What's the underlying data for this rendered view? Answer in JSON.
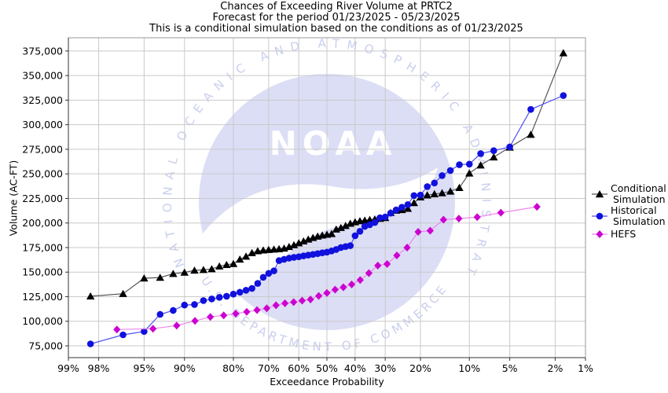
{
  "title": {
    "line1": "Chances of Exceeding River Volume at PRTC2",
    "line2": "Forecast for the period 01/23/2025 - 05/23/2025",
    "line3": "This is a conditional simulation based on the conditions as of 01/23/2025"
  },
  "watermark": {
    "arc_top_text": "NATIONAL OCEANIC AND ATMOSPHERIC ADMINISTRATION",
    "arc_bottom_text": "U.S. DEPARTMENT OF COMMERCE",
    "logo_text": "NOAA",
    "circle_color": "#dcdef6",
    "arc_text_color": "#c9cfee",
    "logo_letter_color": "#ffffff"
  },
  "chart_data": {
    "type": "line",
    "title": "Chances of Exceeding River Volume at PRTC2",
    "xlabel": "Exceedance Probability",
    "ylabel": "Volume (AC-FT)",
    "x_scale": "normal-probability-reversed",
    "grid": true,
    "legend_position": "right",
    "x_ticks": [
      {
        "value": 99,
        "label": "99%"
      },
      {
        "value": 98,
        "label": "98%"
      },
      {
        "value": 95,
        "label": "95%"
      },
      {
        "value": 90,
        "label": "90%"
      },
      {
        "value": 80,
        "label": "80%"
      },
      {
        "value": 70,
        "label": "70%"
      },
      {
        "value": 60,
        "label": "60%"
      },
      {
        "value": 50,
        "label": "50%"
      },
      {
        "value": 40,
        "label": "40%"
      },
      {
        "value": 30,
        "label": "30%"
      },
      {
        "value": 20,
        "label": "20%"
      },
      {
        "value": 10,
        "label": "10%"
      },
      {
        "value": 5,
        "label": "5%"
      },
      {
        "value": 2,
        "label": "2%"
      },
      {
        "value": 1,
        "label": "1%"
      }
    ],
    "y_ticks": [
      {
        "value": 75000,
        "label": "75,000"
      },
      {
        "value": 100000,
        "label": "100,000"
      },
      {
        "value": 125000,
        "label": "125,000"
      },
      {
        "value": 150000,
        "label": "150,000"
      },
      {
        "value": 175000,
        "label": "175,000"
      },
      {
        "value": 200000,
        "label": "200,000"
      },
      {
        "value": 225000,
        "label": "225,000"
      },
      {
        "value": 250000,
        "label": "250,000"
      },
      {
        "value": 275000,
        "label": "275,000"
      },
      {
        "value": 300000,
        "label": "300,000"
      },
      {
        "value": 325000,
        "label": "325,000"
      },
      {
        "value": 350000,
        "label": "350,000"
      },
      {
        "value": 375000,
        "label": "375,000"
      }
    ],
    "xlim_percent": [
      99,
      1
    ],
    "ylim": [
      63000,
      388500
    ],
    "series": [
      {
        "name": "Conditional Simulation",
        "legend_lines": [
          "Conditional",
          "Simulation"
        ],
        "marker": "triangle",
        "marker_color": "#000000",
        "line_color": "#555555",
        "points": [
          [
            98.33,
            125500
          ],
          [
            96.67,
            128000
          ],
          [
            95,
            143800
          ],
          [
            93.33,
            144500
          ],
          [
            91.67,
            148400
          ],
          [
            90,
            149700
          ],
          [
            88.33,
            151800
          ],
          [
            86.67,
            152400
          ],
          [
            85,
            153200
          ],
          [
            83.33,
            156000
          ],
          [
            81.67,
            157500
          ],
          [
            80,
            158500
          ],
          [
            78.33,
            163000
          ],
          [
            76.67,
            166000
          ],
          [
            75,
            169600
          ],
          [
            73.33,
            171500
          ],
          [
            71.67,
            172300
          ],
          [
            70,
            172800
          ],
          [
            68.33,
            173200
          ],
          [
            66.67,
            173600
          ],
          [
            65,
            174200
          ],
          [
            63.33,
            175800
          ],
          [
            61.67,
            177600
          ],
          [
            60,
            179600
          ],
          [
            58.33,
            181500
          ],
          [
            56.67,
            183400
          ],
          [
            55,
            185000
          ],
          [
            53.33,
            186400
          ],
          [
            51.67,
            187500
          ],
          [
            50,
            188300
          ],
          [
            48.33,
            189000
          ],
          [
            46.67,
            193600
          ],
          [
            45,
            195200
          ],
          [
            43.33,
            197200
          ],
          [
            41.67,
            199500
          ],
          [
            40,
            201000
          ],
          [
            38.33,
            202100
          ],
          [
            36.67,
            202700
          ],
          [
            35,
            203300
          ],
          [
            33.33,
            203900
          ],
          [
            31.67,
            204500
          ],
          [
            30,
            205300
          ],
          [
            28.33,
            210500
          ],
          [
            26.67,
            212800
          ],
          [
            25,
            213400
          ],
          [
            23.33,
            214700
          ],
          [
            21.67,
            220500
          ],
          [
            20,
            226300
          ],
          [
            18.33,
            228300
          ],
          [
            16.67,
            229500
          ],
          [
            15,
            230500
          ],
          [
            13.33,
            232200
          ],
          [
            11.67,
            235900
          ],
          [
            10,
            250600
          ],
          [
            8.33,
            258800
          ],
          [
            6.67,
            267000
          ],
          [
            5,
            277000
          ],
          [
            3.33,
            290000
          ],
          [
            1.67,
            373000
          ]
        ]
      },
      {
        "name": "Historical Simulation",
        "legend_lines": [
          "Historical",
          "Simulation"
        ],
        "marker": "circle",
        "marker_color": "#1111dd",
        "line_color": "#4d4df2",
        "points": [
          [
            98.33,
            77000
          ],
          [
            96.67,
            86200
          ],
          [
            95,
            89600
          ],
          [
            93.33,
            107000
          ],
          [
            91.67,
            111000
          ],
          [
            90,
            116500
          ],
          [
            88.33,
            117000
          ],
          [
            86.67,
            121000
          ],
          [
            85,
            122700
          ],
          [
            83.33,
            124300
          ],
          [
            81.67,
            125400
          ],
          [
            80,
            127600
          ],
          [
            78.33,
            129500
          ],
          [
            76.67,
            131500
          ],
          [
            75,
            133400
          ],
          [
            73.33,
            138500
          ],
          [
            71.67,
            144700
          ],
          [
            70,
            148700
          ],
          [
            68.33,
            151300
          ],
          [
            66.67,
            161700
          ],
          [
            65,
            163000
          ],
          [
            63.33,
            164200
          ],
          [
            61.67,
            165000
          ],
          [
            60,
            165600
          ],
          [
            58.33,
            166500
          ],
          [
            56.67,
            167300
          ],
          [
            55,
            168000
          ],
          [
            53.33,
            168800
          ],
          [
            51.67,
            169600
          ],
          [
            50,
            170300
          ],
          [
            48.33,
            171500
          ],
          [
            46.67,
            173000
          ],
          [
            45,
            175000
          ],
          [
            43.33,
            176000
          ],
          [
            41.67,
            176900
          ],
          [
            40,
            187000
          ],
          [
            38.33,
            191500
          ],
          [
            36.67,
            196500
          ],
          [
            35,
            198200
          ],
          [
            33.33,
            200500
          ],
          [
            31.67,
            205300
          ],
          [
            30,
            206100
          ],
          [
            28.33,
            210000
          ],
          [
            26.67,
            213300
          ],
          [
            25,
            216000
          ],
          [
            23.33,
            218700
          ],
          [
            21.67,
            227900
          ],
          [
            20,
            228400
          ],
          [
            18.33,
            237000
          ],
          [
            16.67,
            240700
          ],
          [
            15,
            248200
          ],
          [
            13.33,
            253400
          ],
          [
            11.67,
            259300
          ],
          [
            10,
            259900
          ],
          [
            8.33,
            270600
          ],
          [
            6.67,
            273600
          ],
          [
            5,
            277400
          ],
          [
            3.33,
            315600
          ],
          [
            1.67,
            329700
          ]
        ]
      },
      {
        "name": "HEFS",
        "legend_lines": [
          "HEFS"
        ],
        "marker": "diamond",
        "marker_color": "#cc00d0",
        "line_color": "#ee85ee",
        "points": [
          [
            97.06,
            91600
          ],
          [
            94.12,
            92400
          ],
          [
            91.18,
            95600
          ],
          [
            88.24,
            100400
          ],
          [
            85.29,
            104400
          ],
          [
            82.35,
            106000
          ],
          [
            79.41,
            107800
          ],
          [
            76.47,
            109600
          ],
          [
            73.53,
            111400
          ],
          [
            70.59,
            113200
          ],
          [
            67.65,
            116300
          ],
          [
            64.71,
            118300
          ],
          [
            61.76,
            119500
          ],
          [
            58.82,
            121000
          ],
          [
            55.88,
            122200
          ],
          [
            52.94,
            125800
          ],
          [
            50,
            128800
          ],
          [
            47.06,
            132200
          ],
          [
            44.12,
            134600
          ],
          [
            41.18,
            137500
          ],
          [
            38.24,
            142000
          ],
          [
            35.29,
            149000
          ],
          [
            32.35,
            156700
          ],
          [
            29.41,
            158300
          ],
          [
            26.47,
            167000
          ],
          [
            23.53,
            175000
          ],
          [
            20.59,
            191000
          ],
          [
            17.65,
            192200
          ],
          [
            14.71,
            203400
          ],
          [
            11.76,
            204500
          ],
          [
            8.82,
            206000
          ],
          [
            5.88,
            210500
          ],
          [
            2.94,
            216500
          ]
        ]
      }
    ],
    "colors": {
      "grid": "#c9c9c9",
      "frame": "#999999",
      "axis": "#333333",
      "tick_text": "#000000"
    }
  }
}
